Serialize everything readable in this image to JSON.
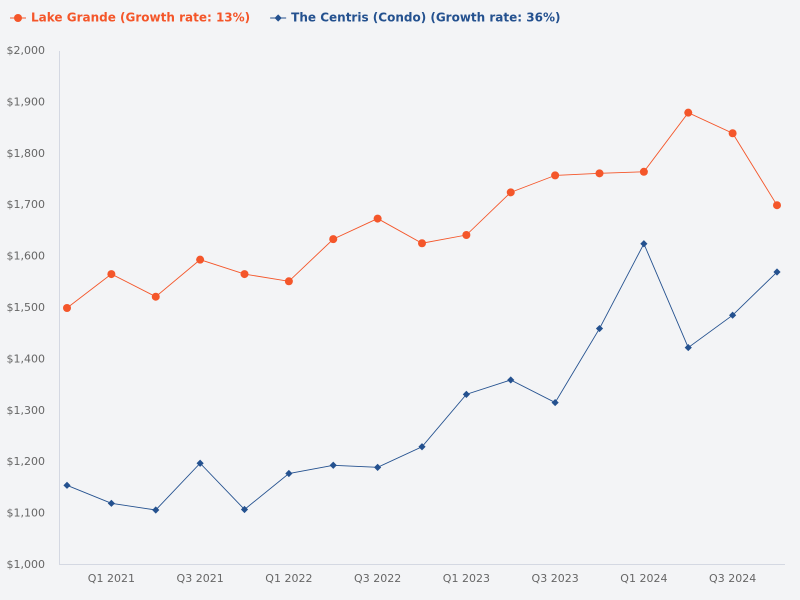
{
  "chart_data": {
    "type": "line",
    "categories": [
      null,
      "Q1 2021",
      null,
      "Q3 2021",
      null,
      "Q1 2022",
      null,
      "Q3 2022",
      null,
      "Q1 2023",
      null,
      "Q3 2023",
      null,
      "Q1 2024",
      null,
      "Q3 2024",
      null
    ],
    "series": [
      {
        "name": "Lake Grande (Growth rate: 13%)",
        "color": "#f4562a",
        "marker": "circle",
        "values": [
          1500,
          1566,
          1522,
          1594,
          1566,
          1552,
          1634,
          1674,
          1626,
          1642,
          1725,
          1758,
          1762,
          1765,
          1880,
          1840,
          1700
        ]
      },
      {
        "name": "The Centris (Condo) (Growth rate: 36%)",
        "color": "#24518f",
        "marker": "diamond",
        "values": [
          1155,
          1120,
          1107,
          1198,
          1108,
          1178,
          1194,
          1190,
          1230,
          1332,
          1360,
          1316,
          1460,
          1625,
          1423,
          1486,
          1570
        ]
      }
    ],
    "ylim": [
      1000,
      2000
    ],
    "yticks": [
      {
        "value": 1000,
        "label": "$1,000"
      },
      {
        "value": 1100,
        "label": "$1,100"
      },
      {
        "value": 1200,
        "label": "$1,200"
      },
      {
        "value": 1300,
        "label": "$1,300"
      },
      {
        "value": 1400,
        "label": "$1,400"
      },
      {
        "value": 1500,
        "label": "$1,500"
      },
      {
        "value": 1600,
        "label": "$1,600"
      },
      {
        "value": 1700,
        "label": "$1,700"
      },
      {
        "value": 1800,
        "label": "$1,800"
      },
      {
        "value": 1900,
        "label": "$1,900"
      },
      {
        "value": 2000,
        "label": "$2,000"
      }
    ],
    "grid": false
  }
}
